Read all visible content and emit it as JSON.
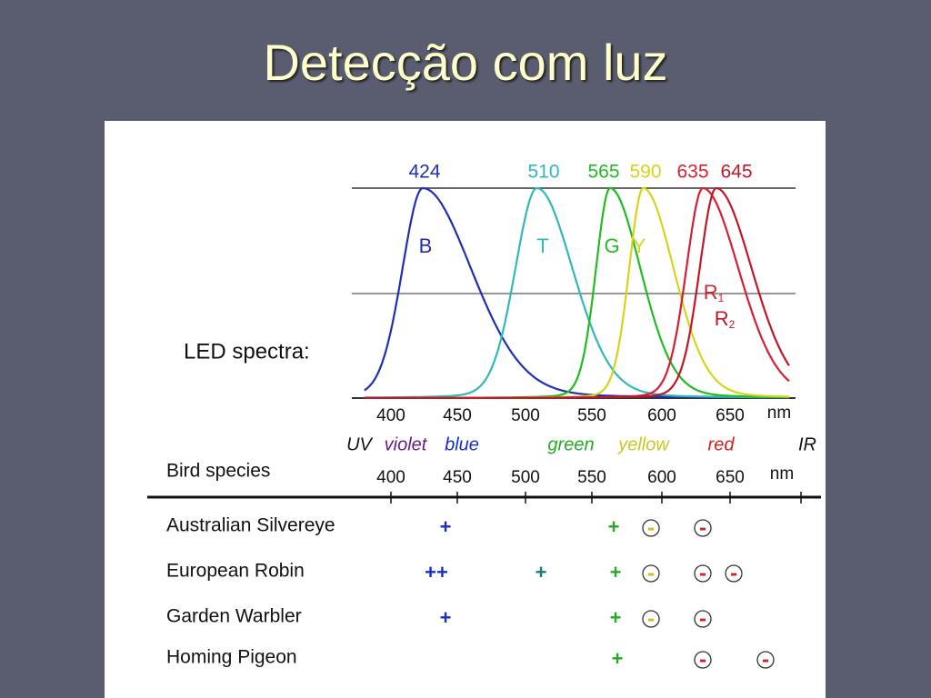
{
  "title": "Detecção com luz",
  "figure": {
    "spectra_label": "LED spectra:",
    "spectra": [
      {
        "peak": 424,
        "letter": "B",
        "color": "#2030b0"
      },
      {
        "peak": 510,
        "letter": "T",
        "color": "#30b8bc"
      },
      {
        "peak": 565,
        "letter": "G",
        "color": "#22bb22"
      },
      {
        "peak": 590,
        "letter": "Y",
        "color": "#d4d41c"
      },
      {
        "peak": 635,
        "letter": "R",
        "sub": "1",
        "color": "#d42030"
      },
      {
        "peak": 645,
        "letter": "R",
        "sub": "2",
        "color": "#c01828"
      }
    ],
    "spectrum_ticks": [
      400,
      450,
      500,
      550,
      600,
      650
    ],
    "spectrum_unit": "nm",
    "bands": [
      {
        "label": "UV",
        "color": "#111111"
      },
      {
        "label": "violet",
        "color": "#6a1a8a"
      },
      {
        "label": "blue",
        "color": "#1a2fc0"
      },
      {
        "label": "green",
        "color": "#22aa22"
      },
      {
        "label": "yellow",
        "color": "#c8c820"
      },
      {
        "label": "red",
        "color": "#d42020"
      },
      {
        "label": "IR",
        "color": "#111111"
      }
    ],
    "table_header": "Bird species",
    "table_ticks": [
      400,
      450,
      500,
      550,
      600,
      650
    ],
    "table_unit": "nm",
    "rows": [
      {
        "name": "Australian Silvereye",
        "marks": [
          {
            "sign": "+",
            "color": "#1a2fc0"
          },
          {
            "sign": "+",
            "color": "#22aa22"
          },
          {
            "sign": "-",
            "color": "#c8c020"
          },
          {
            "sign": "-",
            "color": "#d42020"
          }
        ]
      },
      {
        "name": "European Robin",
        "marks": [
          {
            "sign": "++",
            "color": "#1a2fc0"
          },
          {
            "sign": "+",
            "color": "#1a7a80"
          },
          {
            "sign": "+",
            "color": "#22aa22"
          },
          {
            "sign": "-",
            "color": "#c8c020"
          },
          {
            "sign": "-",
            "color": "#d42020"
          },
          {
            "sign": "-",
            "color": "#d42020"
          }
        ]
      },
      {
        "name": "Garden Warbler",
        "marks": [
          {
            "sign": "+",
            "color": "#1a2fc0"
          },
          {
            "sign": "+",
            "color": "#22aa22"
          },
          {
            "sign": "-",
            "color": "#c8c020"
          },
          {
            "sign": "-",
            "color": "#d42020"
          }
        ]
      },
      {
        "name": "Homing Pigeon",
        "marks": [
          {
            "sign": "+",
            "color": "#22aa22"
          },
          {
            "sign": "-",
            "color": "#d42020"
          },
          {
            "sign": "-",
            "color": "#d42020"
          }
        ]
      }
    ]
  }
}
